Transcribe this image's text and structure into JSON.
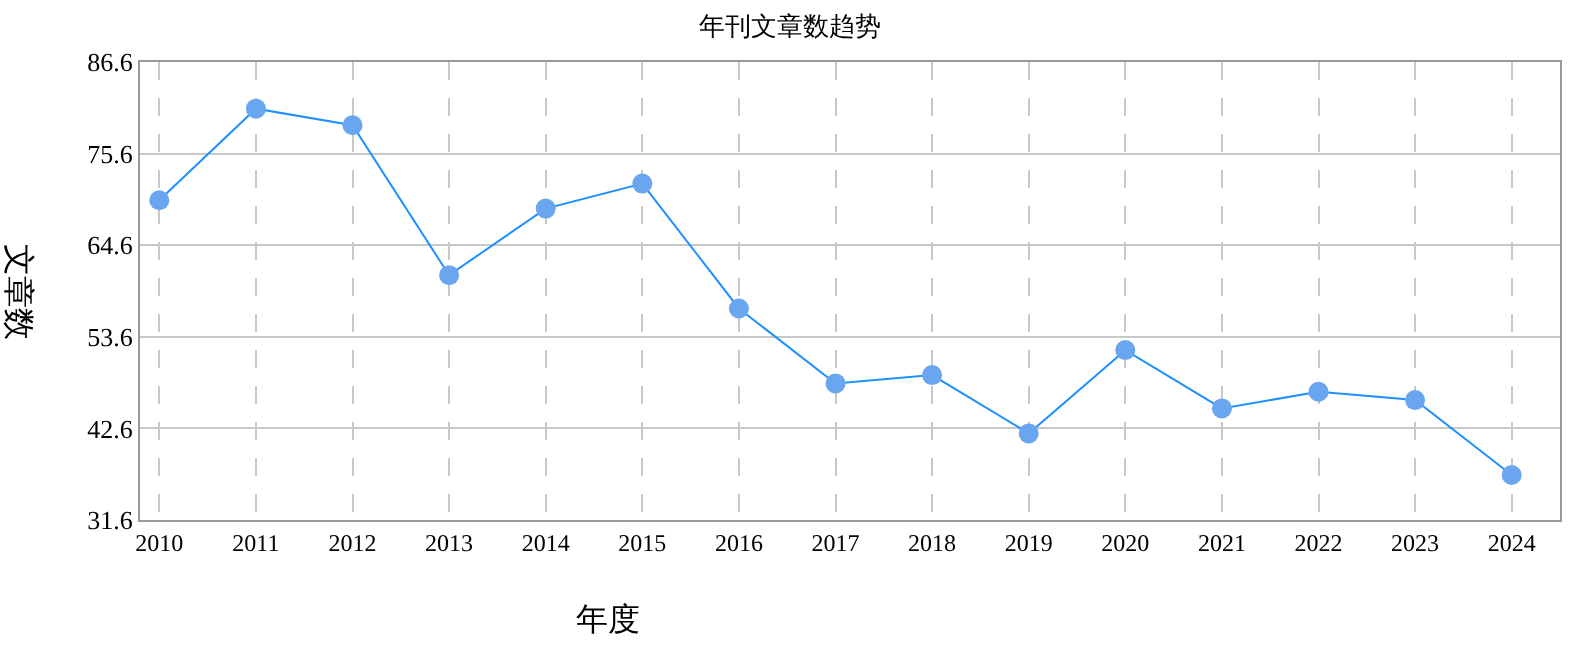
{
  "chart_data": {
    "type": "line",
    "title": "年刊文章数趋势",
    "xlabel": "年度",
    "ylabel": "文章数",
    "x": [
      2010,
      2011,
      2012,
      2013,
      2014,
      2015,
      2016,
      2017,
      2018,
      2019,
      2020,
      2021,
      2022,
      2023,
      2024
    ],
    "series": [
      {
        "color": "#1e90ff",
        "values": [
          70,
          81,
          79,
          61,
          69,
          72,
          57,
          48,
          49,
          42,
          52,
          45,
          47,
          46,
          37
        ]
      }
    ],
    "xlim": [
      2009.8,
      2024.5
    ],
    "xticks": [
      2010,
      2011,
      2012,
      2013,
      2014,
      2015,
      2016,
      2017,
      2018,
      2019,
      2020,
      2021,
      2022,
      2023,
      2024
    ],
    "ylim": [
      31.6,
      86.6
    ],
    "yticks": [
      31.6,
      42.6,
      53.6,
      64.6,
      75.6,
      86.6
    ],
    "grid": true,
    "marker": "circle",
    "line_style": "solid",
    "legend": false
  }
}
